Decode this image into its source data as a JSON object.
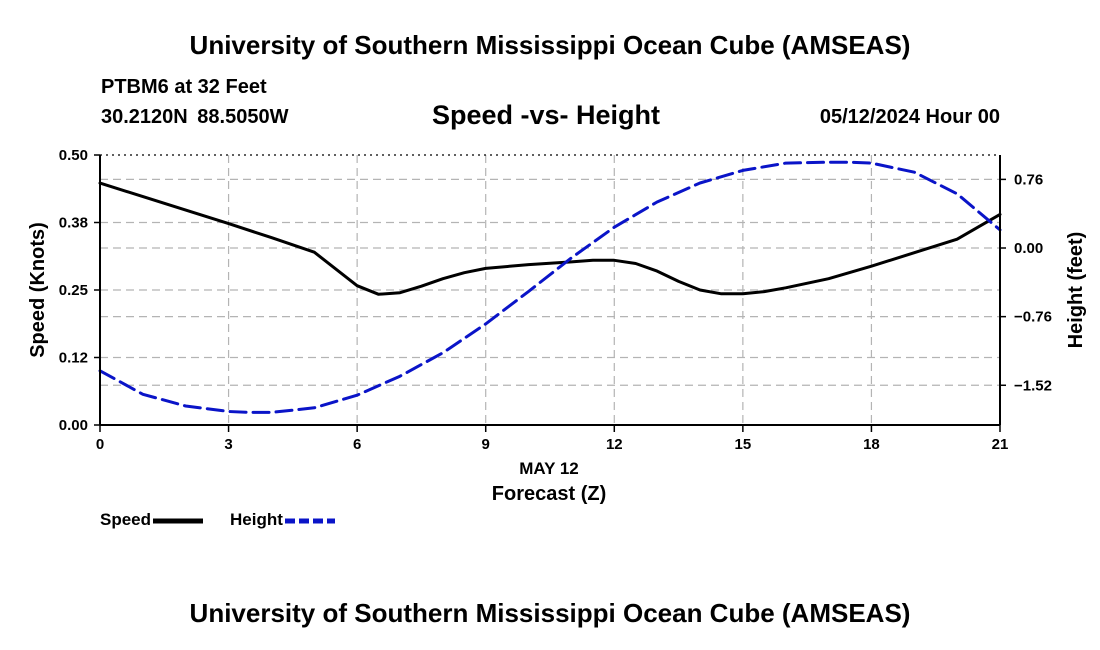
{
  "header": {
    "title": "University of Southern Mississippi Ocean Cube (AMSEAS)",
    "station": "PTBM6 at 32 Feet",
    "coords": "30.2120N  88.5050W",
    "subtitle": "Speed -vs- Height",
    "datetime": "05/12/2024 Hour 00"
  },
  "footer": {
    "title": "University of Southern Mississippi Ocean Cube (AMSEAS)"
  },
  "colors": {
    "speed": "#000000",
    "height": "#0a14c8",
    "grid": "#b4b4b4"
  },
  "chart_data": {
    "type": "line",
    "title": "Speed -vs- Height",
    "xlabel": "Forecast (Z)",
    "xlabel_date": "MAY 12",
    "ylabel_left": "Speed (Knots)",
    "ylabel_right": "Height (feet)",
    "xlim": [
      0,
      21
    ],
    "ylim_left": [
      0,
      0.5
    ],
    "ylim_right": [
      -1.96,
      1.03
    ],
    "x_ticks": [
      0,
      3,
      6,
      9,
      12,
      15,
      18,
      21
    ],
    "x_tick_labels": [
      "0",
      "3",
      "6",
      "9",
      "12",
      "15",
      "18",
      "21"
    ],
    "y_left_ticks": [
      0,
      0.125,
      0.25,
      0.375,
      0.5
    ],
    "y_left_tick_labels": [
      "0.00",
      "0.12",
      "0.25",
      "0.38",
      "0.50"
    ],
    "y_right_ticks": [
      -1.52,
      -0.76,
      0.0,
      0.76
    ],
    "y_right_tick_labels": [
      "−1.52",
      "−0.76",
      "0.00",
      "0.76"
    ],
    "grid": true,
    "legend_position": "bottom-left",
    "series": [
      {
        "name": "Speed",
        "axis": "left",
        "style": "solid",
        "x": [
          0,
          1,
          2,
          3,
          4,
          5,
          6,
          6.5,
          7,
          7.5,
          8,
          8.5,
          9,
          10,
          11,
          11.5,
          12,
          12.5,
          13,
          13.5,
          14,
          14.5,
          15,
          15.5,
          16,
          17,
          18,
          19,
          20,
          21
        ],
        "values": [
          0.448,
          0.423,
          0.398,
          0.373,
          0.347,
          0.32,
          0.258,
          0.242,
          0.245,
          0.257,
          0.271,
          0.282,
          0.29,
          0.297,
          0.302,
          0.305,
          0.305,
          0.299,
          0.285,
          0.266,
          0.25,
          0.243,
          0.243,
          0.247,
          0.254,
          0.271,
          0.294,
          0.319,
          0.344,
          0.39
        ]
      },
      {
        "name": "Height",
        "axis": "right",
        "style": "dashed",
        "x": [
          0,
          1,
          2,
          3,
          3.5,
          4,
          5,
          6,
          7,
          8,
          9,
          10,
          11,
          12,
          13,
          14,
          15,
          16,
          17,
          17.5,
          18,
          19,
          20,
          21
        ],
        "values": [
          -1.36,
          -1.62,
          -1.75,
          -1.81,
          -1.82,
          -1.82,
          -1.77,
          -1.63,
          -1.42,
          -1.16,
          -0.84,
          -0.48,
          -0.11,
          0.23,
          0.51,
          0.72,
          0.86,
          0.94,
          0.95,
          0.95,
          0.94,
          0.84,
          0.6,
          0.2
        ]
      }
    ],
    "legend": [
      {
        "label": "Speed",
        "style": "solid"
      },
      {
        "label": "Height",
        "style": "dashed"
      }
    ]
  }
}
